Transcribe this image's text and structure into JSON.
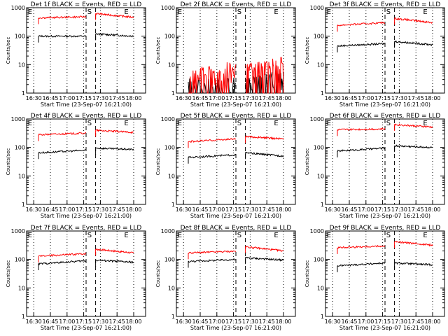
{
  "chart_data": [
    {
      "type": "line",
      "title": "Det 1f BLACK = Events, RED = LLD",
      "xlabel": "Start Time (23-Sep-07 16:21:00)",
      "ylabel": "Counts/sec",
      "yscale": "log",
      "ylim": [
        1,
        1000
      ],
      "yticks": [
        "1",
        "10",
        "100",
        "1000"
      ],
      "xticks": [
        "16:30",
        "16:45",
        "17:00",
        "17:15",
        "17:30",
        "17:45",
        "18:00"
      ],
      "markers": [
        "E",
        "S",
        "E"
      ],
      "series": [
        {
          "name": "BLACK",
          "color": "#000000",
          "segments": [
            {
              "x": [
                0.1,
                0.5
              ],
              "y": [
                100,
                100
              ]
            },
            {
              "x": [
                0.58,
                0.9
              ],
              "y": [
                120,
                100
              ]
            }
          ]
        },
        {
          "name": "RED",
          "color": "#ff0000",
          "segments": [
            {
              "x": [
                0.1,
                0.5
              ],
              "y": [
                440,
                480
              ]
            },
            {
              "x": [
                0.58,
                0.9
              ],
              "y": [
                620,
                460
              ]
            }
          ]
        }
      ]
    },
    {
      "type": "line",
      "title": "Det 2f BLACK = Events, RED = LLD",
      "xlabel": "Start Time (23-Sep-07 16:21:00)",
      "ylabel": "Counts/sec",
      "yscale": "log",
      "ylim": [
        1,
        1000
      ],
      "yticks": [
        "1",
        "10",
        "100",
        "1000"
      ],
      "xticks": [
        "16:30",
        "16:45",
        "17:00",
        "17:15",
        "17:30",
        "17:45",
        "18:00"
      ],
      "markers": [
        "E",
        "S",
        "E"
      ],
      "series": [
        {
          "name": "BLACK",
          "color": "#000000",
          "noisy": true,
          "segments": [
            {
              "x": [
                0.1,
                0.5
              ],
              "y": [
                1,
                1
              ]
            },
            {
              "x": [
                0.58,
                0.9
              ],
              "y": [
                1,
                2
              ]
            }
          ]
        },
        {
          "name": "RED",
          "color": "#ff0000",
          "noisy": true,
          "segments": [
            {
              "x": [
                0.1,
                0.5
              ],
              "y": [
                2,
                4
              ]
            },
            {
              "x": [
                0.58,
                0.9
              ],
              "y": [
                3,
                6
              ]
            }
          ]
        }
      ]
    },
    {
      "type": "line",
      "title": "Det 3f BLACK = Events, RED = LLD",
      "xlabel": "Start Time (23-Sep-07 16:21:00)",
      "ylabel": "Counts/sec",
      "yscale": "log",
      "ylim": [
        1,
        1000
      ],
      "yticks": [
        "1",
        "10",
        "100",
        "1000"
      ],
      "xticks": [
        "16:30",
        "16:45",
        "17:00",
        "17:15",
        "17:30",
        "17:45",
        "18:00"
      ],
      "markers": [
        "E",
        "S",
        "E"
      ],
      "series": [
        {
          "name": "BLACK",
          "color": "#000000",
          "segments": [
            {
              "x": [
                0.1,
                0.5
              ],
              "y": [
                45,
                55
              ]
            },
            {
              "x": [
                0.58,
                0.9
              ],
              "y": [
                65,
                50
              ]
            }
          ]
        },
        {
          "name": "RED",
          "color": "#ff0000",
          "segments": [
            {
              "x": [
                0.1,
                0.5
              ],
              "y": [
                240,
                300
              ]
            },
            {
              "x": [
                0.58,
                0.9
              ],
              "y": [
                420,
                300
              ]
            }
          ]
        }
      ]
    },
    {
      "type": "line",
      "title": "Det 4f BLACK = Events, RED = LLD",
      "xlabel": "Start Time (23-Sep-07 16:21:00)",
      "ylabel": "Counts/sec",
      "yscale": "log",
      "ylim": [
        1,
        1000
      ],
      "yticks": [
        "1",
        "10",
        "100",
        "1000"
      ],
      "xticks": [
        "16:30",
        "16:45",
        "17:00",
        "17:15",
        "17:30",
        "17:45",
        "18:00"
      ],
      "markers": [
        "E",
        "S",
        "E"
      ],
      "series": [
        {
          "name": "BLACK",
          "color": "#000000",
          "segments": [
            {
              "x": [
                0.1,
                0.5
              ],
              "y": [
                65,
                80
              ]
            },
            {
              "x": [
                0.58,
                0.9
              ],
              "y": [
                95,
                85
              ]
            }
          ]
        },
        {
          "name": "RED",
          "color": "#ff0000",
          "segments": [
            {
              "x": [
                0.1,
                0.5
              ],
              "y": [
                280,
                320
              ]
            },
            {
              "x": [
                0.58,
                0.9
              ],
              "y": [
                400,
                340
              ]
            }
          ]
        }
      ]
    },
    {
      "type": "line",
      "title": "Det 5f BLACK = Events, RED = LLD",
      "xlabel": "Start Time (23-Sep-07 16:21:00)",
      "ylabel": "Counts/sec",
      "yscale": "log",
      "ylim": [
        1,
        1000
      ],
      "yticks": [
        "1",
        "10",
        "100",
        "1000"
      ],
      "xticks": [
        "16:30",
        "16:45",
        "17:00",
        "17:15",
        "17:30",
        "17:45",
        "18:00"
      ],
      "markers": [
        "E",
        "S",
        "E"
      ],
      "series": [
        {
          "name": "BLACK",
          "color": "#000000",
          "segments": [
            {
              "x": [
                0.1,
                0.5
              ],
              "y": [
                45,
                55
              ]
            },
            {
              "x": [
                0.58,
                0.9
              ],
              "y": [
                65,
                50
              ]
            }
          ]
        },
        {
          "name": "RED",
          "color": "#ff0000",
          "segments": [
            {
              "x": [
                0.1,
                0.5
              ],
              "y": [
                160,
                200
              ]
            },
            {
              "x": [
                0.58,
                0.9
              ],
              "y": [
                240,
                200
              ]
            }
          ]
        }
      ]
    },
    {
      "type": "line",
      "title": "Det 6f BLACK = Events, RED = LLD",
      "xlabel": "Start Time (23-Sep-07 16:21:00)",
      "ylabel": "Counts/sec",
      "yscale": "log",
      "ylim": [
        1,
        1000
      ],
      "yticks": [
        "1",
        "10",
        "100",
        "1000"
      ],
      "xticks": [
        "16:30",
        "16:45",
        "17:00",
        "17:15",
        "17:30",
        "17:45",
        "18:00"
      ],
      "markers": [
        "E",
        "S",
        "E"
      ],
      "series": [
        {
          "name": "BLACK",
          "color": "#000000",
          "segments": [
            {
              "x": [
                0.1,
                0.5
              ],
              "y": [
                75,
                95
              ]
            },
            {
              "x": [
                0.58,
                0.9
              ],
              "y": [
                115,
                100
              ]
            }
          ]
        },
        {
          "name": "RED",
          "color": "#ff0000",
          "segments": [
            {
              "x": [
                0.1,
                0.5
              ],
              "y": [
                420,
                450
              ]
            },
            {
              "x": [
                0.58,
                0.9
              ],
              "y": [
                640,
                520
              ]
            }
          ]
        }
      ]
    },
    {
      "type": "line",
      "title": "Det 7f BLACK = Events, RED = LLD",
      "xlabel": "Start Time (23-Sep-07 16:21:00)",
      "ylabel": "Counts/sec",
      "yscale": "log",
      "ylim": [
        1,
        1000
      ],
      "yticks": [
        "1",
        "10",
        "100",
        "1000"
      ],
      "xticks": [
        "16:30",
        "16:45",
        "17:00",
        "17:15",
        "17:30",
        "17:45",
        "18:00"
      ],
      "markers": [
        "E",
        "S",
        "E"
      ],
      "series": [
        {
          "name": "BLACK",
          "color": "#000000",
          "segments": [
            {
              "x": [
                0.1,
                0.5
              ],
              "y": [
                70,
                90
              ]
            },
            {
              "x": [
                0.58,
                0.9
              ],
              "y": [
                95,
                80
              ]
            }
          ]
        },
        {
          "name": "RED",
          "color": "#ff0000",
          "segments": [
            {
              "x": [
                0.1,
                0.5
              ],
              "y": [
                130,
                160
              ]
            },
            {
              "x": [
                0.58,
                0.9
              ],
              "y": [
                230,
                170
              ]
            }
          ]
        }
      ]
    },
    {
      "type": "line",
      "title": "Det 8f BLACK = Events, RED = LLD",
      "xlabel": "Start Time (23-Sep-07 16:21:00)",
      "ylabel": "Counts/sec",
      "yscale": "log",
      "ylim": [
        1,
        1000
      ],
      "yticks": [
        "1",
        "10",
        "100",
        "1000"
      ],
      "xticks": [
        "16:30",
        "16:45",
        "17:00",
        "17:15",
        "17:30",
        "17:45",
        "18:00"
      ],
      "markers": [
        "E",
        "S",
        "E"
      ],
      "series": [
        {
          "name": "BLACK",
          "color": "#000000",
          "segments": [
            {
              "x": [
                0.1,
                0.5
              ],
              "y": [
                85,
                100
              ]
            },
            {
              "x": [
                0.58,
                0.9
              ],
              "y": [
                115,
                95
              ]
            }
          ]
        },
        {
          "name": "RED",
          "color": "#ff0000",
          "segments": [
            {
              "x": [
                0.1,
                0.5
              ],
              "y": [
                170,
                195
              ]
            },
            {
              "x": [
                0.58,
                0.9
              ],
              "y": [
                280,
                200
              ]
            }
          ]
        }
      ]
    },
    {
      "type": "line",
      "title": "Det 9f BLACK = Events, RED = LLD",
      "xlabel": "Start Time (23-Sep-07 16:21:00)",
      "ylabel": "Counts/sec",
      "yscale": "log",
      "ylim": [
        1,
        1000
      ],
      "yticks": [
        "1",
        "10",
        "100",
        "1000"
      ],
      "xticks": [
        "16:30",
        "16:45",
        "17:00",
        "17:15",
        "17:30",
        "17:45",
        "18:00"
      ],
      "markers": [
        "E",
        "S",
        "E"
      ],
      "series": [
        {
          "name": "BLACK",
          "color": "#000000",
          "segments": [
            {
              "x": [
                0.1,
                0.5
              ],
              "y": [
                60,
                75
              ]
            },
            {
              "x": [
                0.58,
                0.9
              ],
              "y": [
                75,
                65
              ]
            }
          ]
        },
        {
          "name": "RED",
          "color": "#ff0000",
          "segments": [
            {
              "x": [
                0.1,
                0.5
              ],
              "y": [
                260,
                300
              ]
            },
            {
              "x": [
                0.58,
                0.9
              ],
              "y": [
                420,
                320
              ]
            }
          ]
        }
      ]
    }
  ]
}
